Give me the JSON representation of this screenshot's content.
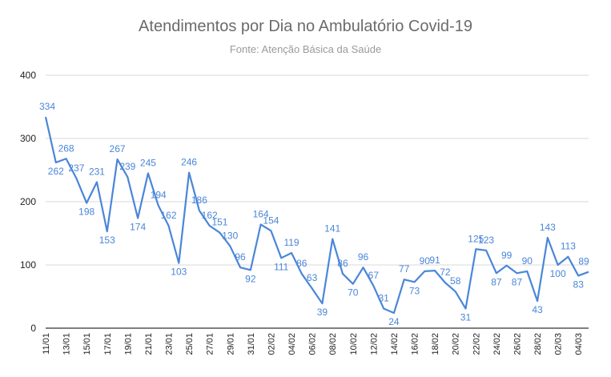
{
  "chart_data": {
    "type": "line",
    "title": "Atendimentos por Dia no Ambulatório Covid-19",
    "subtitle": "Fonte: Atenção Básica da Saúde",
    "xlabel": "",
    "ylabel": "",
    "ylim": [
      0,
      400
    ],
    "yticks": [
      0,
      100,
      200,
      300,
      400
    ],
    "grid": true,
    "line_color": "#4a86d8",
    "dates": [
      "11/01",
      "12/01",
      "13/01",
      "14/01",
      "15/01",
      "16/01",
      "17/01",
      "18/01",
      "19/01",
      "20/01",
      "21/01",
      "22/01",
      "23/01",
      "24/01",
      "25/01",
      "26/01",
      "27/01",
      "28/01",
      "29/01",
      "30/01",
      "31/01",
      "01/02",
      "02/02",
      "03/02",
      "04/02",
      "05/02",
      "06/02",
      "07/02",
      "08/02",
      "09/02",
      "10/02",
      "11/02",
      "12/02",
      "13/02",
      "14/02",
      "15/02",
      "16/02",
      "17/02",
      "18/02",
      "19/02",
      "20/02",
      "21/02",
      "22/02",
      "23/02",
      "24/02",
      "25/02",
      "26/02",
      "27/02",
      "28/02",
      "01/03",
      "02/03",
      "03/03",
      "04/03",
      "05/03"
    ],
    "xtick_labels": [
      "11/01",
      "13/01",
      "15/01",
      "17/01",
      "19/01",
      "21/01",
      "23/01",
      "25/01",
      "27/01",
      "29/01",
      "31/01",
      "02/02",
      "04/02",
      "06/02",
      "08/02",
      "10/02",
      "12/02",
      "14/02",
      "16/02",
      "18/02",
      "20/02",
      "22/02",
      "24/02",
      "26/02",
      "28/02",
      "02/03",
      "04/03"
    ],
    "values": [
      334,
      262,
      268,
      237,
      198,
      231,
      153,
      267,
      239,
      174,
      245,
      194,
      162,
      103,
      246,
      186,
      162,
      151,
      130,
      96,
      92,
      164,
      154,
      111,
      119,
      86,
      63,
      39,
      141,
      86,
      70,
      96,
      67,
      31,
      24,
      77,
      73,
      90,
      91,
      72,
      58,
      31,
      125,
      123,
      87,
      99,
      87,
      90,
      43,
      143,
      100,
      113,
      83,
      89
    ]
  }
}
